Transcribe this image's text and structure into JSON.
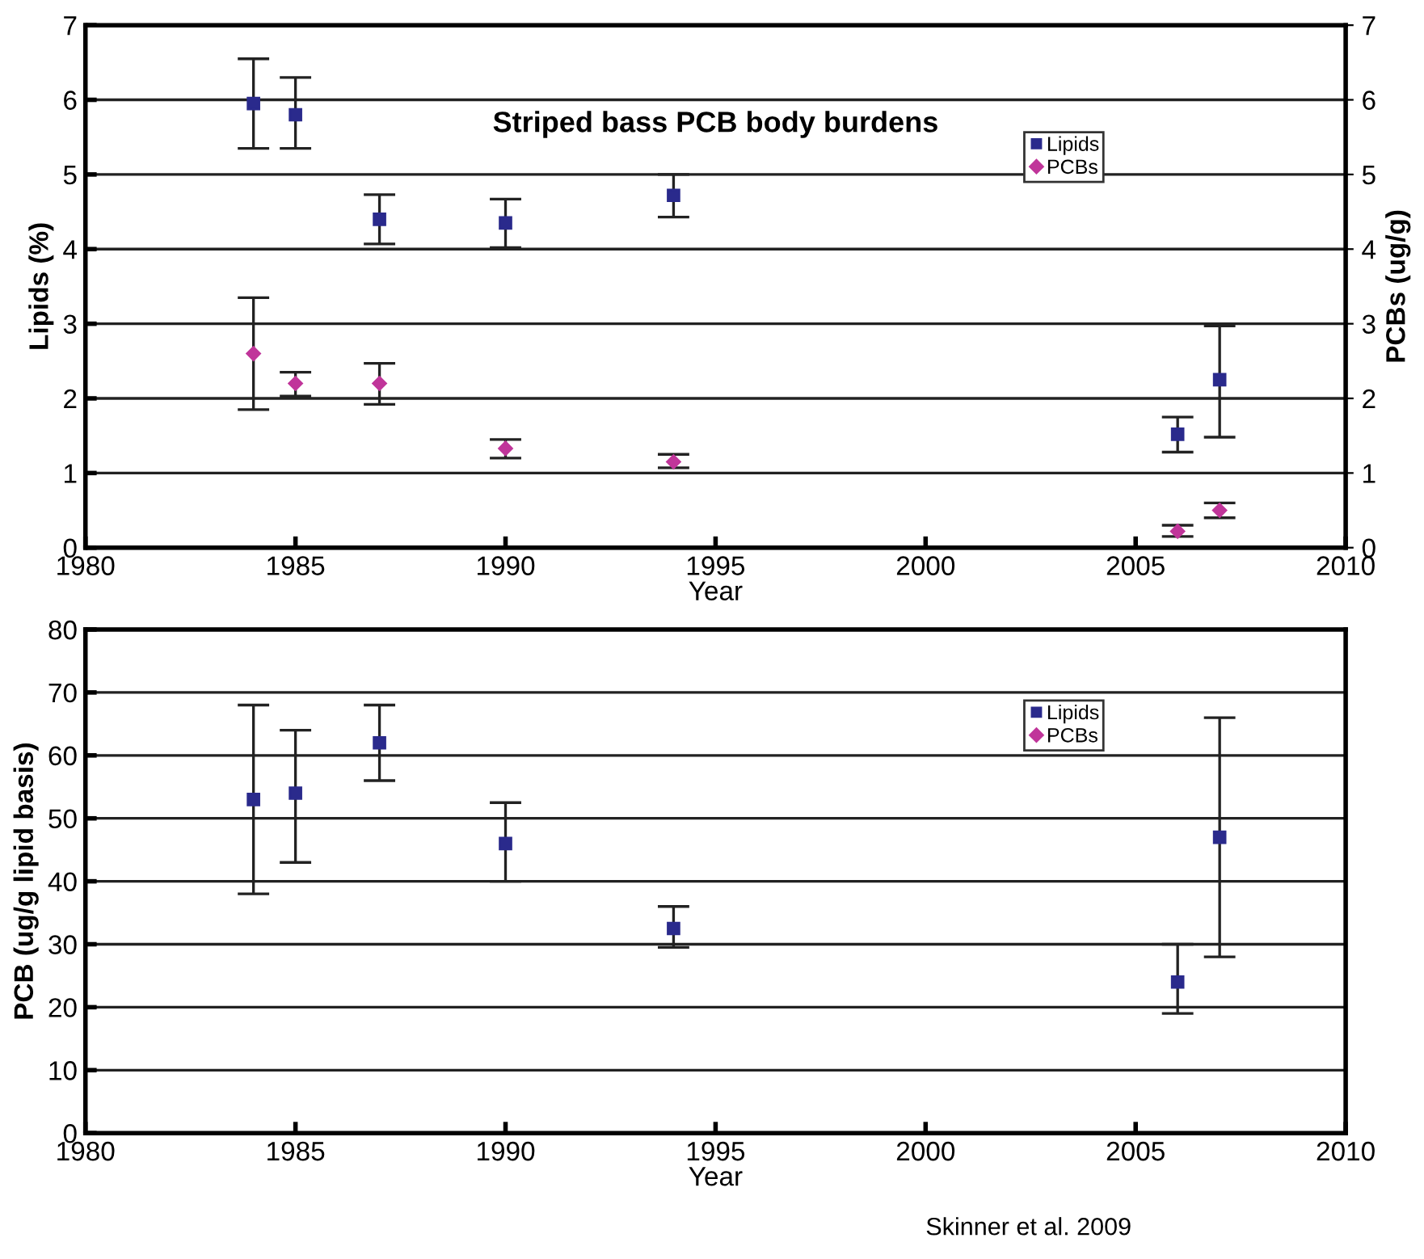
{
  "chart_data": [
    {
      "type": "scatter",
      "title": "Striped bass PCB body burdens",
      "xlabel": "Year",
      "ylabel": "Lipids (%)",
      "y2label": "PCBs (ug/g)",
      "x": [
        1984,
        1985,
        1987,
        1990,
        1994,
        2006,
        2007
      ],
      "series": [
        {
          "name": "Lipids",
          "color": "#2a2a8c",
          "marker": "square",
          "values": [
            5.95,
            5.8,
            4.4,
            4.35,
            4.72,
            1.52,
            2.25
          ],
          "errors": [
            [
              5.35,
              6.55
            ],
            [
              5.35,
              6.3
            ],
            [
              4.07,
              4.73
            ],
            [
              4.02,
              4.67
            ],
            [
              4.43,
              5.0
            ],
            [
              1.28,
              1.75
            ],
            [
              1.48,
              2.97
            ]
          ]
        },
        {
          "name": "PCBs",
          "color": "#c0359a",
          "marker": "diamond",
          "axis": "y2",
          "values": [
            2.6,
            2.2,
            2.2,
            1.33,
            1.15,
            0.22,
            0.5
          ],
          "errors": [
            [
              1.85,
              3.35
            ],
            [
              2.03,
              2.35
            ],
            [
              1.92,
              2.47
            ],
            [
              1.2,
              1.45
            ],
            [
              1.07,
              1.25
            ],
            [
              0.15,
              0.3
            ],
            [
              0.4,
              0.6
            ]
          ]
        }
      ],
      "xlim": [
        1980,
        2010
      ],
      "xticks": [
        1980,
        1985,
        1990,
        1995,
        2000,
        2005,
        2010
      ],
      "ylim": [
        0,
        7
      ],
      "yticks": [
        0,
        1,
        2,
        3,
        4,
        5,
        6,
        7
      ],
      "y2lim": [
        0,
        7
      ],
      "y2ticks": [
        0,
        1,
        2,
        3,
        4,
        5,
        6,
        7
      ],
      "grid": "y",
      "legend": "top right"
    },
    {
      "type": "scatter",
      "xlabel": "Year",
      "ylabel": "PCB (ug/g lipid basis)",
      "x": [
        1984,
        1985,
        1987,
        1990,
        1994,
        2006,
        2007
      ],
      "series": [
        {
          "name": "Lipids",
          "color": "#2a2a8c",
          "marker": "square",
          "values": [
            53,
            54,
            62,
            46,
            32.5,
            24,
            47
          ],
          "errors": [
            [
              38,
              68
            ],
            [
              43,
              64
            ],
            [
              56,
              68
            ],
            [
              40,
              52.5
            ],
            [
              29.5,
              36
            ],
            [
              19,
              30
            ],
            [
              28,
              66
            ]
          ]
        },
        {
          "name": "PCBs",
          "color": "#c0359a",
          "marker": "diamond",
          "values": [
            null,
            null,
            null,
            null,
            null,
            null,
            null
          ]
        }
      ],
      "xlim": [
        1980,
        2010
      ],
      "xticks": [
        1980,
        1985,
        1990,
        1995,
        2000,
        2005,
        2010
      ],
      "ylim": [
        0,
        80
      ],
      "yticks": [
        0,
        10,
        20,
        30,
        40,
        50,
        60,
        70,
        80
      ],
      "grid": "y",
      "legend": "top right",
      "annotations": [
        "Skinner et al. 2009"
      ]
    }
  ]
}
